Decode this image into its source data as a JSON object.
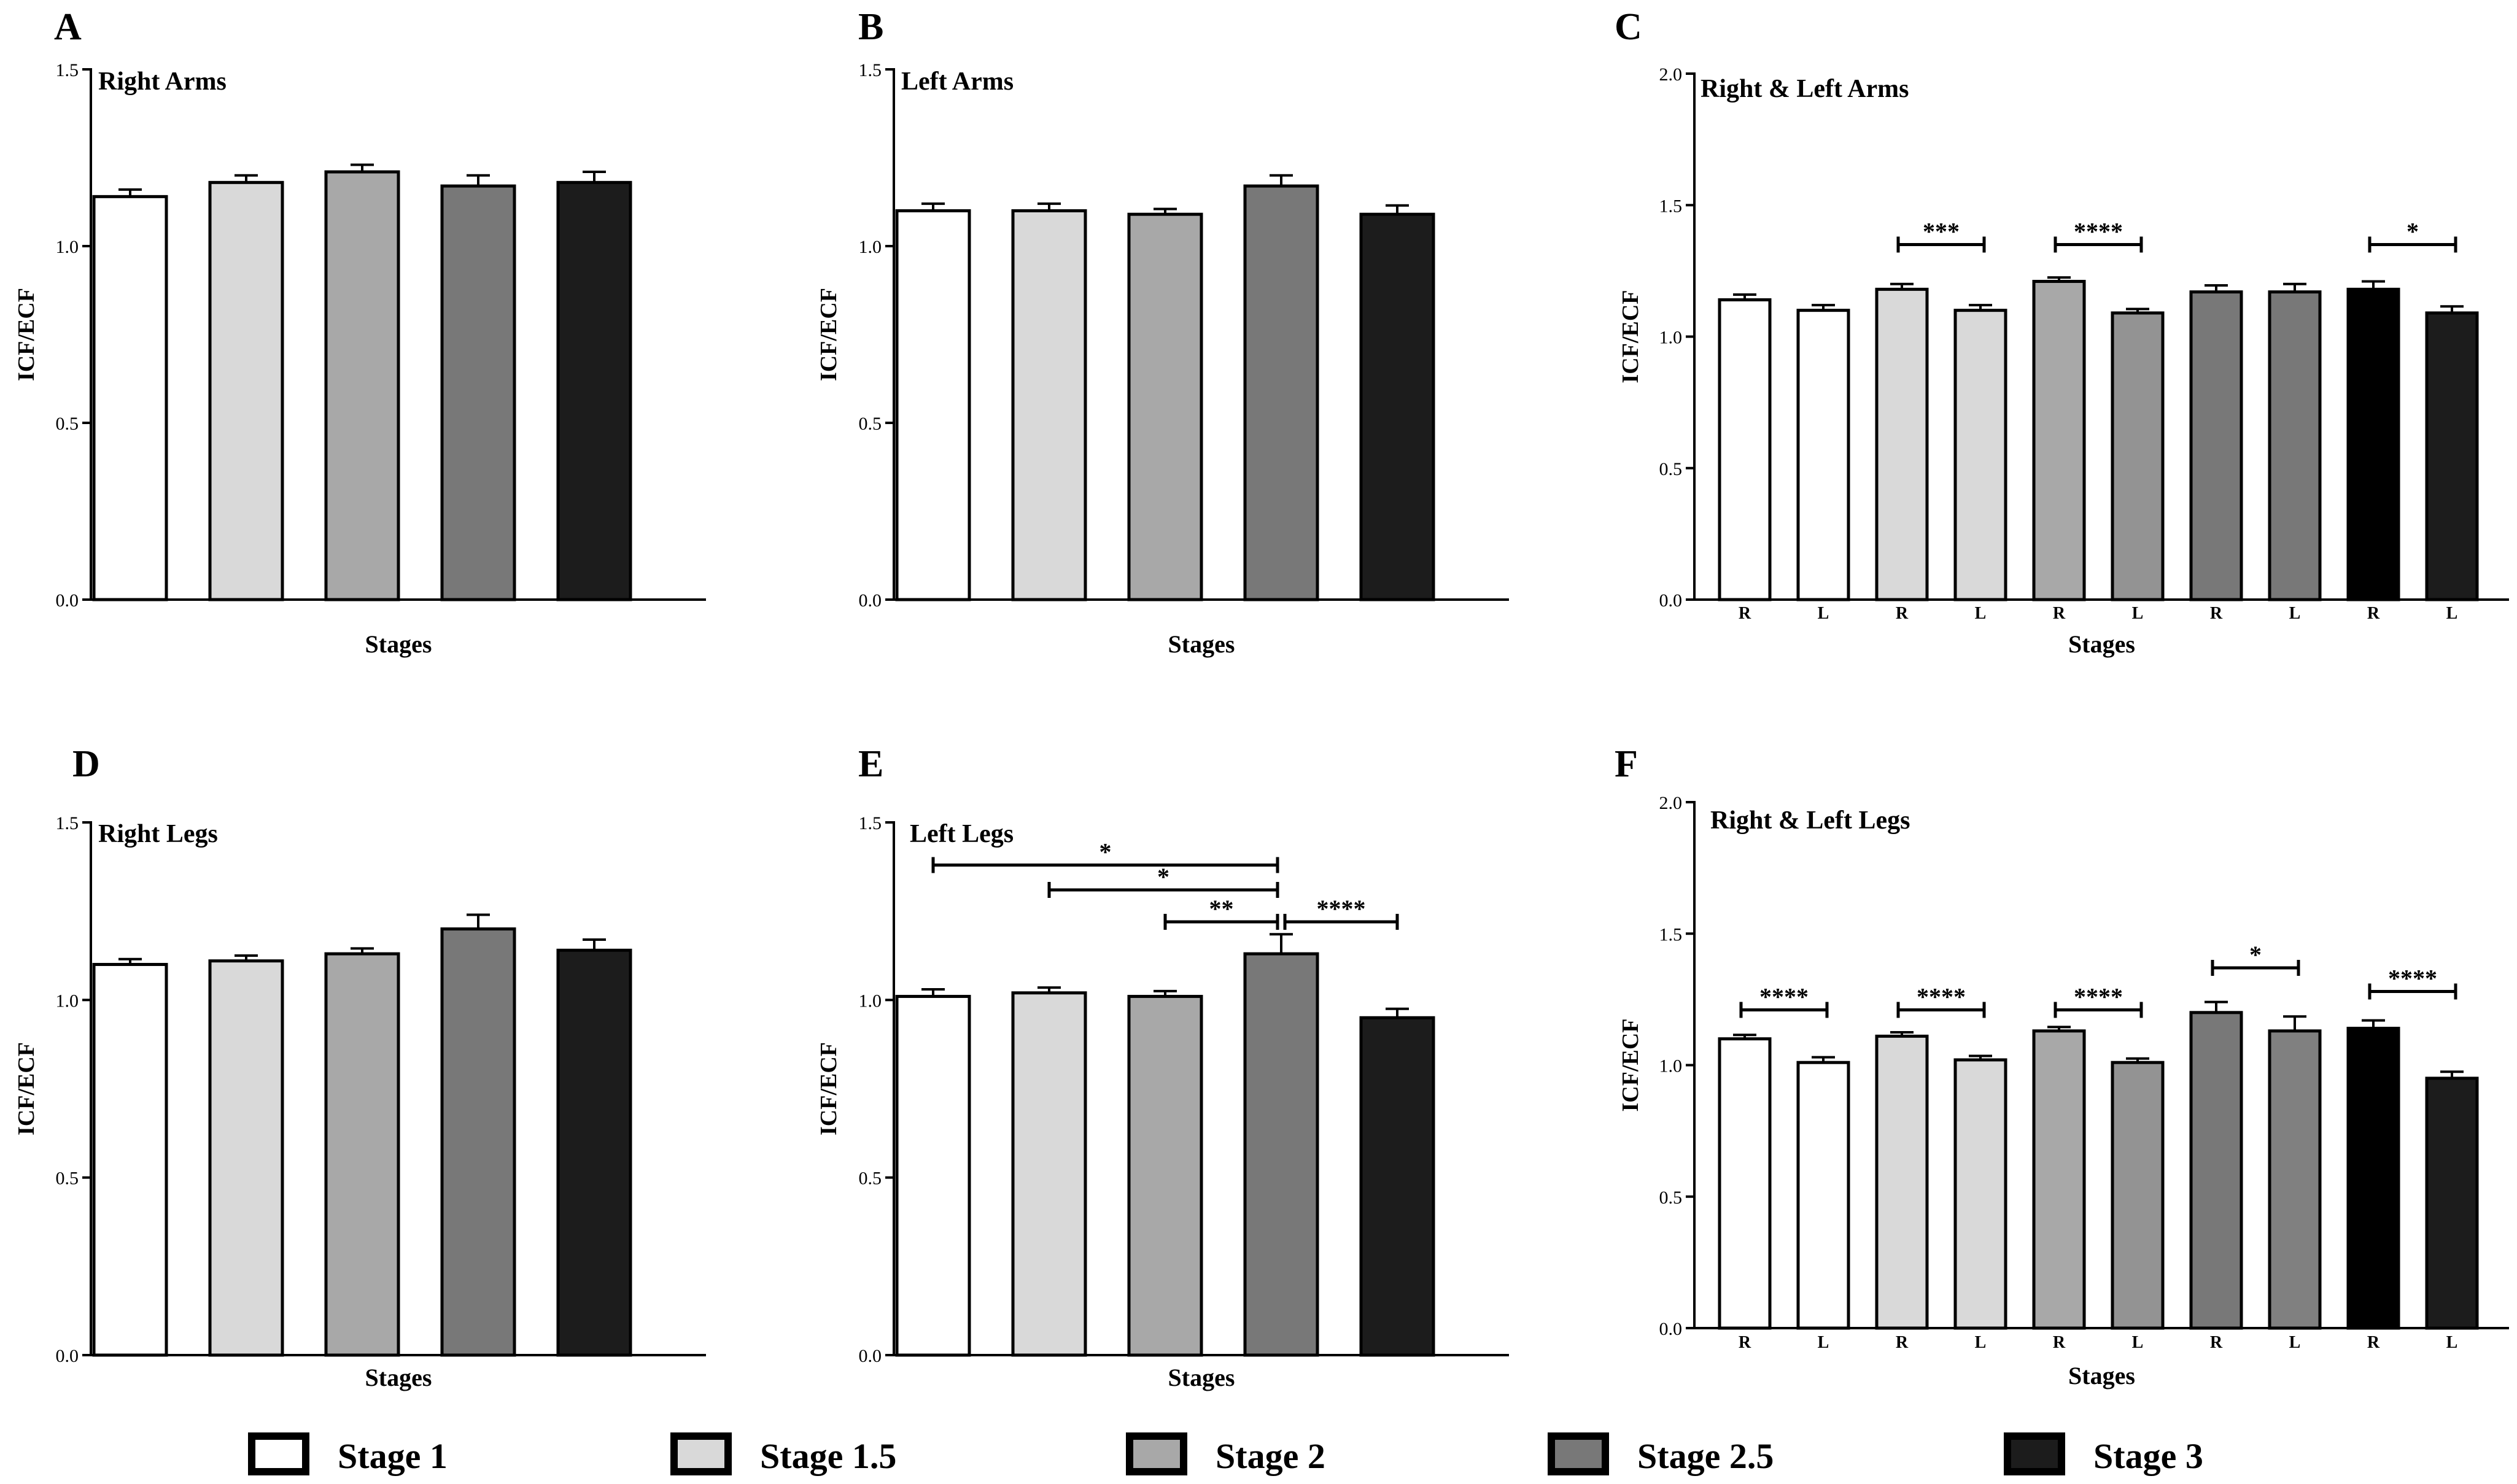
{
  "colors": {
    "stage1": "#ffffff",
    "stage15": "#d9d9d9",
    "stage2": "#a8a8a8",
    "stage25": "#787878",
    "stage3": "#1c1c1c",
    "stage3_right": "#000000",
    "stage25_left_legs": "#808080",
    "stage2_left": "#939393"
  },
  "legend": {
    "items": [
      {
        "label": "Stage 1",
        "color": "#ffffff"
      },
      {
        "label": "Stage 1.5",
        "color": "#d9d9d9"
      },
      {
        "label": "Stage 2",
        "color": "#a8a8a8"
      },
      {
        "label": "Stage 2.5",
        "color": "#787878"
      },
      {
        "label": "Stage 3",
        "color": "#1c1c1c"
      }
    ]
  },
  "chart_data": [
    {
      "id": "A",
      "panel_label": "A",
      "type": "bar",
      "title": "Right Arms",
      "xlabel": "Stages",
      "ylabel": "ICF/ECF",
      "ylim": [
        0,
        1.5
      ],
      "ticks": [
        0.0,
        0.5,
        1.0,
        1.5
      ],
      "tick_labels": [
        "0.0",
        "0.5",
        "1.0",
        "1.5"
      ],
      "categories": [
        "Stage 1",
        "Stage 1.5",
        "Stage 2",
        "Stage 2.5",
        "Stage 3"
      ],
      "values": [
        1.14,
        1.18,
        1.21,
        1.17,
        1.18
      ],
      "errors": [
        0.02,
        0.02,
        0.02,
        0.03,
        0.03
      ],
      "colors": [
        "#ffffff",
        "#d9d9d9",
        "#a8a8a8",
        "#787878",
        "#1c1c1c"
      ],
      "significance": []
    },
    {
      "id": "B",
      "panel_label": "B",
      "type": "bar",
      "title": "Left Arms",
      "xlabel": "Stages",
      "ylabel": "ICF/ECF",
      "ylim": [
        0,
        1.5
      ],
      "ticks": [
        0.0,
        0.5,
        1.0,
        1.5
      ],
      "tick_labels": [
        "0.0",
        "0.5",
        "1.0",
        "1.5"
      ],
      "categories": [
        "Stage 1",
        "Stage 1.5",
        "Stage 2",
        "Stage 2.5",
        "Stage 3"
      ],
      "values": [
        1.1,
        1.1,
        1.09,
        1.17,
        1.09
      ],
      "errors": [
        0.02,
        0.02,
        0.015,
        0.03,
        0.025
      ],
      "colors": [
        "#ffffff",
        "#d9d9d9",
        "#a8a8a8",
        "#787878",
        "#1c1c1c"
      ],
      "significance": []
    },
    {
      "id": "C",
      "panel_label": "C",
      "type": "bar",
      "title": "Right & Left Arms",
      "xlabel": "Stages",
      "ylabel": "ICF/ECF",
      "ylim": [
        0,
        2.0
      ],
      "ticks": [
        0.0,
        0.5,
        1.0,
        1.5,
        2.0
      ],
      "tick_labels": [
        "0.0",
        "0.5",
        "1.0",
        "1.5",
        "2.0"
      ],
      "categories": [
        "R",
        "L",
        "R",
        "L",
        "R",
        "L",
        "R",
        "L",
        "R",
        "L"
      ],
      "values": [
        1.14,
        1.1,
        1.18,
        1.1,
        1.21,
        1.09,
        1.17,
        1.17,
        1.18,
        1.09
      ],
      "errors": [
        0.02,
        0.02,
        0.02,
        0.02,
        0.015,
        0.015,
        0.025,
        0.03,
        0.03,
        0.025
      ],
      "colors": [
        "#ffffff",
        "#ffffff",
        "#d9d9d9",
        "#d9d9d9",
        "#a8a8a8",
        "#939393",
        "#787878",
        "#787878",
        "#000000",
        "#1c1c1c"
      ],
      "significance": [
        {
          "from": 2,
          "to": 3,
          "level": 1.35,
          "label": "***"
        },
        {
          "from": 4,
          "to": 5,
          "level": 1.35,
          "label": "****"
        },
        {
          "from": 8,
          "to": 9,
          "level": 1.35,
          "label": "*"
        }
      ]
    },
    {
      "id": "D",
      "panel_label": "D",
      "type": "bar",
      "title": "Right Legs",
      "xlabel": "Stages",
      "ylabel": "ICF/ECF",
      "ylim": [
        0,
        1.5
      ],
      "ticks": [
        0.0,
        0.5,
        1.0,
        1.5
      ],
      "tick_labels": [
        "0.0",
        "0.5",
        "1.0",
        "1.5"
      ],
      "categories": [
        "Stage 1",
        "Stage 1.5",
        "Stage 2",
        "Stage 2.5",
        "Stage 3"
      ],
      "values": [
        1.1,
        1.11,
        1.13,
        1.2,
        1.14
      ],
      "errors": [
        0.015,
        0.015,
        0.015,
        0.04,
        0.03
      ],
      "colors": [
        "#ffffff",
        "#d9d9d9",
        "#a8a8a8",
        "#787878",
        "#1c1c1c"
      ],
      "significance": []
    },
    {
      "id": "E",
      "panel_label": "E",
      "type": "bar",
      "title": "Left Legs",
      "xlabel": "Stages",
      "ylabel": "ICF/ECF",
      "ylim": [
        0,
        1.5
      ],
      "ticks": [
        0.0,
        0.5,
        1.0,
        1.5
      ],
      "tick_labels": [
        "0.0",
        "0.5",
        "1.0",
        "1.5"
      ],
      "categories": [
        "Stage 1",
        "Stage 1.5",
        "Stage 2",
        "Stage 2.5",
        "Stage 3"
      ],
      "values": [
        1.01,
        1.02,
        1.01,
        1.13,
        0.95
      ],
      "errors": [
        0.02,
        0.015,
        0.015,
        0.055,
        0.025
      ],
      "colors": [
        "#ffffff",
        "#d9d9d9",
        "#a8a8a8",
        "#787878",
        "#1c1c1c"
      ],
      "significance": [
        {
          "from": 0,
          "to": 3,
          "level": 1.38,
          "label": "*"
        },
        {
          "from": 1,
          "to": 3,
          "level": 1.31,
          "label": "*"
        },
        {
          "from": 2,
          "to": 3,
          "level": 1.22,
          "label": "**"
        },
        {
          "from": 3,
          "to": 4,
          "level": 1.22,
          "label": "****"
        }
      ]
    },
    {
      "id": "F",
      "panel_label": "F",
      "type": "bar",
      "title": "Right & Left Legs",
      "xlabel": "Stages",
      "ylabel": "ICF/ECF",
      "ylim": [
        0,
        2.0
      ],
      "ticks": [
        0.0,
        0.5,
        1.0,
        1.5,
        2.0
      ],
      "tick_labels": [
        "0.0",
        "0.5",
        "1.0",
        "1.5",
        "2.0"
      ],
      "categories": [
        "R",
        "L",
        "R",
        "L",
        "R",
        "L",
        "R",
        "L",
        "R",
        "L"
      ],
      "values": [
        1.1,
        1.01,
        1.11,
        1.02,
        1.13,
        1.01,
        1.2,
        1.13,
        1.14,
        0.95
      ],
      "errors": [
        0.015,
        0.02,
        0.015,
        0.015,
        0.015,
        0.015,
        0.04,
        0.055,
        0.03,
        0.025
      ],
      "colors": [
        "#ffffff",
        "#ffffff",
        "#d9d9d9",
        "#d9d9d9",
        "#a8a8a8",
        "#939393",
        "#787878",
        "#808080",
        "#000000",
        "#1c1c1c"
      ],
      "significance": [
        {
          "from": 0,
          "to": 1,
          "level": 1.21,
          "label": "****"
        },
        {
          "from": 2,
          "to": 3,
          "level": 1.21,
          "label": "****"
        },
        {
          "from": 4,
          "to": 5,
          "level": 1.21,
          "label": "****"
        },
        {
          "from": 6,
          "to": 7,
          "level": 1.37,
          "label": "*"
        },
        {
          "from": 8,
          "to": 9,
          "level": 1.28,
          "label": "****"
        }
      ]
    }
  ]
}
